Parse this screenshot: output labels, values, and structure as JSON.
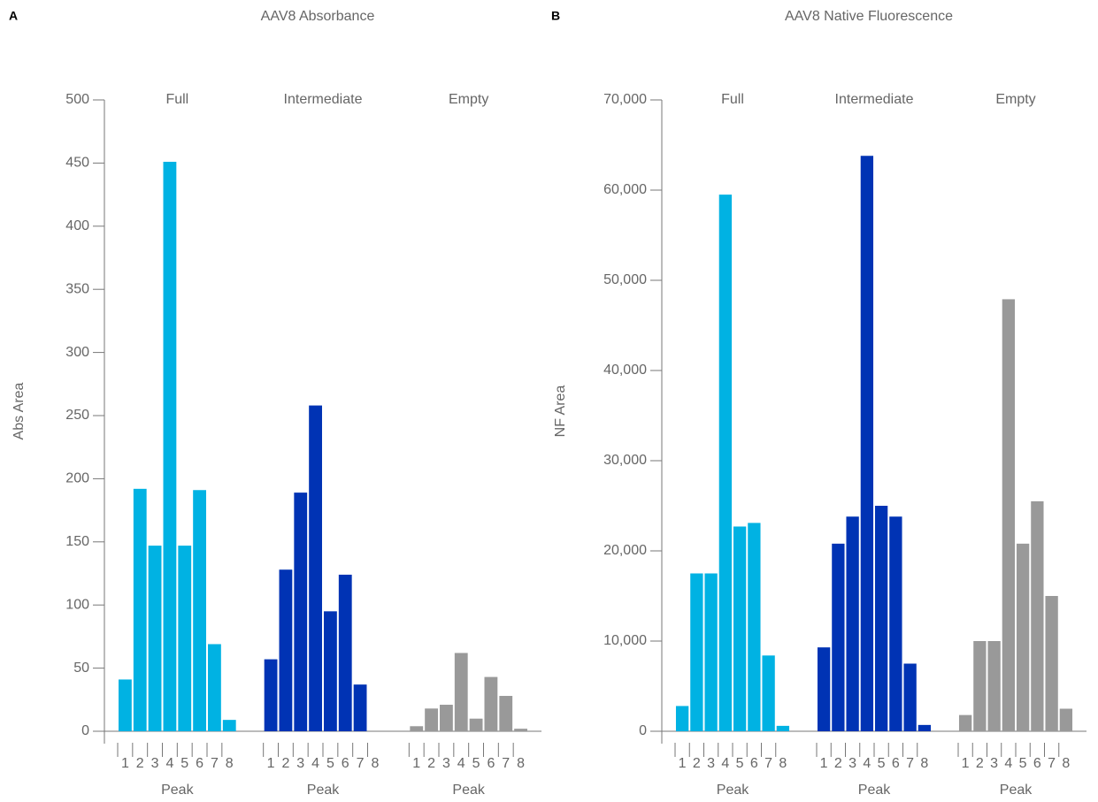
{
  "chart_data": [
    {
      "type": "bar",
      "panel": "A",
      "title": "AAV8 Absorbance",
      "y_label": "Abs Area",
      "x_label": "Peak",
      "categories": [
        "1",
        "2",
        "3",
        "4",
        "5",
        "6",
        "7",
        "8"
      ],
      "series": [
        {
          "name": "Full",
          "color": "#00b2e3",
          "values": [
            41,
            192,
            147,
            451,
            147,
            191,
            69,
            9
          ]
        },
        {
          "name": "Intermediate",
          "color": "#0033b4",
          "values": [
            57,
            128,
            189,
            258,
            95,
            124,
            37,
            0
          ]
        },
        {
          "name": "Empty",
          "color": "#999999",
          "values": [
            4,
            18,
            21,
            62,
            10,
            43,
            28,
            2
          ]
        }
      ],
      "ylim": [
        0,
        500
      ],
      "yticks": [
        0,
        50,
        100,
        150,
        200,
        250,
        300,
        350,
        400,
        450,
        500
      ]
    },
    {
      "type": "bar",
      "panel": "B",
      "title": "AAV8 Native Fluorescence",
      "y_label": "NF Area",
      "x_label": "Peak",
      "categories": [
        "1",
        "2",
        "3",
        "4",
        "5",
        "6",
        "7",
        "8"
      ],
      "series": [
        {
          "name": "Full",
          "color": "#00b2e3",
          "values": [
            2800,
            17500,
            17500,
            59500,
            22700,
            23100,
            8400,
            600
          ]
        },
        {
          "name": "Intermediate",
          "color": "#0033b4",
          "values": [
            9300,
            20800,
            23800,
            63800,
            25000,
            23800,
            7500,
            700
          ]
        },
        {
          "name": "Empty",
          "color": "#999999",
          "values": [
            1800,
            10000,
            10000,
            47900,
            20800,
            25500,
            15000,
            2500
          ]
        }
      ],
      "ylim": [
        0,
        70000
      ],
      "yticks": [
        0,
        {
          "value": 10000,
          "label": "10,000"
        },
        {
          "value": 20000,
          "label": "20,000"
        },
        {
          "value": 30000,
          "label": "30,000"
        },
        {
          "value": 40000,
          "label": "40,000"
        },
        {
          "value": 50000,
          "label": "50,000"
        },
        {
          "value": 60000,
          "label": "60,000"
        },
        {
          "value": 70000,
          "label": "70,000"
        }
      ]
    }
  ]
}
